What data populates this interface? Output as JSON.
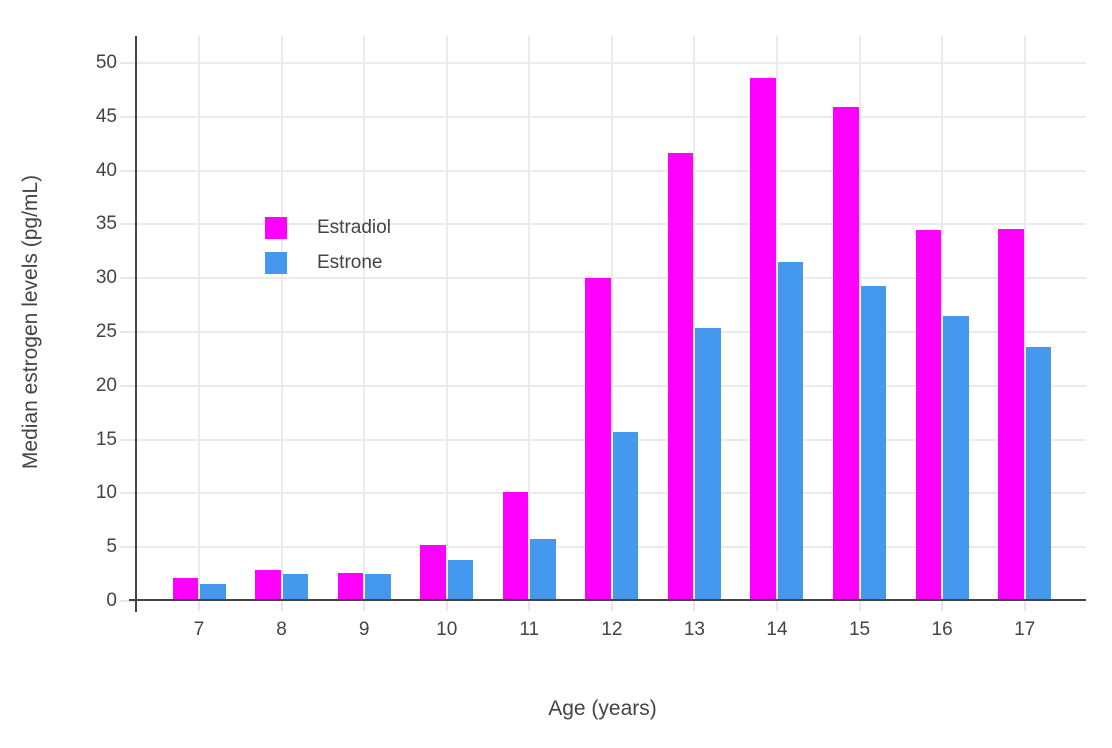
{
  "chart_data": {
    "type": "bar",
    "title": "",
    "xlabel": "Age (years)",
    "ylabel": "Median estrogen levels (pg/mL)",
    "categories": [
      "7",
      "8",
      "9",
      "10",
      "11",
      "12",
      "13",
      "14",
      "15",
      "16",
      "17"
    ],
    "series": [
      {
        "name": "Estradiol",
        "color": "#FF00FF",
        "values": [
          2.1,
          2.9,
          2.6,
          5.2,
          10.1,
          30.0,
          41.6,
          48.6,
          45.9,
          34.5,
          34.6
        ]
      },
      {
        "name": "Estrone",
        "color": "#4499EE",
        "values": [
          1.6,
          2.5,
          2.5,
          3.8,
          5.8,
          15.7,
          25.4,
          31.5,
          29.3,
          26.5,
          23.6
        ]
      }
    ],
    "yticks": [
      0,
      5,
      10,
      15,
      20,
      25,
      30,
      35,
      40,
      45,
      50
    ],
    "ylim": [
      0,
      52.5
    ],
    "grid": true,
    "legend_position": "inside-top-left",
    "colors": {
      "background": "#FFFFFF",
      "text": "#444444",
      "axis_line": "#444444",
      "gridline": "#EBEBEB",
      "tick": "#E8E8E8"
    }
  }
}
